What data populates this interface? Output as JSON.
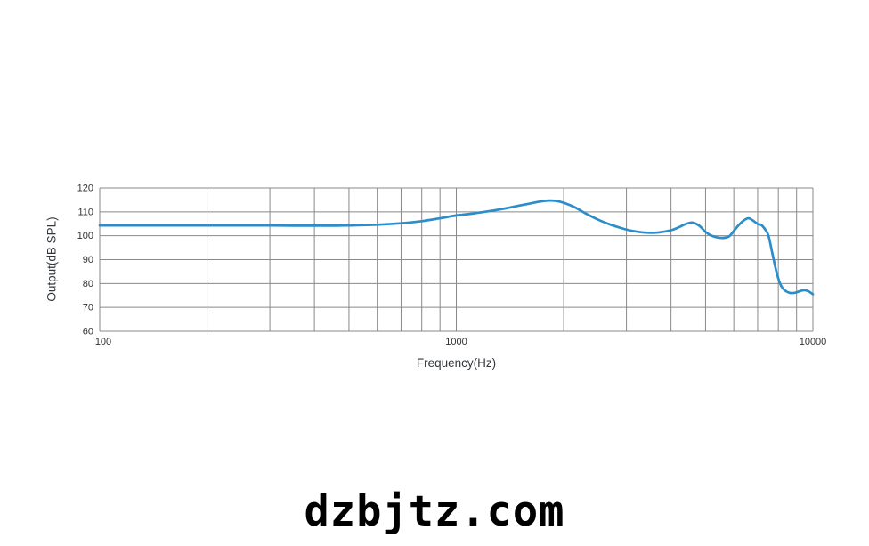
{
  "page": {
    "background": "#ffffff"
  },
  "watermark": {
    "text": "dzbjtz.com"
  },
  "chart_data": {
    "type": "line",
    "title": "",
    "xlabel": "Frequency(Hz)",
    "ylabel": "Output(dB SPL)",
    "x_scale": "log",
    "xlim": [
      100,
      10000
    ],
    "ylim": [
      60,
      120
    ],
    "grid": true,
    "legend": "none",
    "grid_color": "#898989",
    "tick_text_color": "#2f3237",
    "x_tick_labels": [
      {
        "value": 100,
        "label": "100"
      },
      {
        "value": 1000,
        "label": "1000"
      },
      {
        "value": 10000,
        "label": "10000"
      }
    ],
    "y_tick_labels": [
      {
        "value": 120,
        "label": "120"
      },
      {
        "value": 110,
        "label": "110"
      },
      {
        "value": 100,
        "label": "100"
      },
      {
        "value": 90,
        "label": "90"
      },
      {
        "value": 80,
        "label": "80"
      },
      {
        "value": 70,
        "label": "70"
      },
      {
        "value": 60,
        "label": "60"
      }
    ],
    "x_gridlines": [
      100,
      200,
      300,
      400,
      500,
      600,
      700,
      800,
      900,
      1000,
      2000,
      3000,
      4000,
      5000,
      6000,
      7000,
      8000,
      9000,
      10000
    ],
    "y_gridlines": [
      60,
      70,
      80,
      90,
      100,
      110,
      120
    ],
    "series": [
      {
        "name": "frequency-response",
        "color": "#2b8dc9",
        "stroke_width": 2.7,
        "points": [
          [
            100,
            104.3
          ],
          [
            150,
            104.3
          ],
          [
            200,
            104.3
          ],
          [
            250,
            104.3
          ],
          [
            300,
            104.3
          ],
          [
            350,
            104.2
          ],
          [
            400,
            104.2
          ],
          [
            450,
            104.2
          ],
          [
            500,
            104.3
          ],
          [
            600,
            104.6
          ],
          [
            700,
            105.2
          ],
          [
            800,
            106.1
          ],
          [
            900,
            107.3
          ],
          [
            1000,
            108.5
          ],
          [
            1100,
            109.2
          ],
          [
            1200,
            110.0
          ],
          [
            1300,
            110.8
          ],
          [
            1400,
            111.7
          ],
          [
            1500,
            112.6
          ],
          [
            1600,
            113.4
          ],
          [
            1700,
            114.2
          ],
          [
            1800,
            114.7
          ],
          [
            1900,
            114.6
          ],
          [
            2000,
            113.8
          ],
          [
            2150,
            111.9
          ],
          [
            2300,
            109.4
          ],
          [
            2500,
            106.7
          ],
          [
            2700,
            104.7
          ],
          [
            2900,
            103.2
          ],
          [
            3100,
            102.1
          ],
          [
            3400,
            101.3
          ],
          [
            3700,
            101.4
          ],
          [
            4000,
            102.3
          ],
          [
            4200,
            103.5
          ],
          [
            4400,
            104.9
          ],
          [
            4600,
            105.5
          ],
          [
            4800,
            104.2
          ],
          [
            5000,
            101.6
          ],
          [
            5200,
            100.0
          ],
          [
            5500,
            99.1
          ],
          [
            5800,
            99.6
          ],
          [
            6000,
            102.0
          ],
          [
            6200,
            104.5
          ],
          [
            6400,
            106.4
          ],
          [
            6600,
            107.3
          ],
          [
            6800,
            106.3
          ],
          [
            7000,
            104.9
          ],
          [
            7150,
            104.6
          ],
          [
            7300,
            103.2
          ],
          [
            7500,
            100.2
          ],
          [
            7700,
            92.5
          ],
          [
            7900,
            85.0
          ],
          [
            8100,
            79.8
          ],
          [
            8300,
            77.4
          ],
          [
            8600,
            76.1
          ],
          [
            8900,
            76.1
          ],
          [
            9200,
            76.8
          ],
          [
            9450,
            77.2
          ],
          [
            9700,
            76.8
          ],
          [
            10000,
            75.5
          ]
        ]
      }
    ]
  }
}
